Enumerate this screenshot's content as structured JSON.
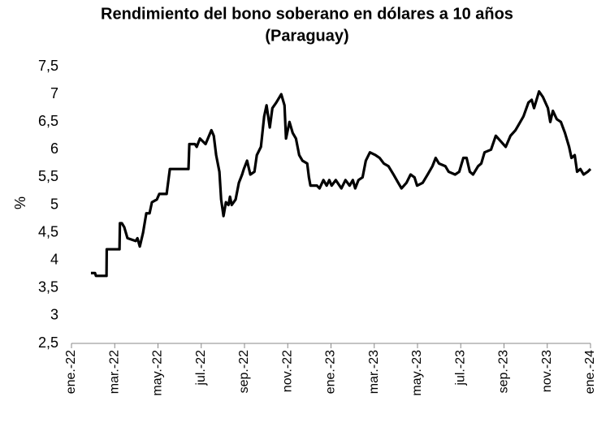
{
  "chart_data": {
    "type": "line",
    "title": [
      "Rendimiento del bono soberano en dólares a 10 años",
      "(Paraguay)"
    ],
    "y_label": "%",
    "xlim": [
      0,
      24
    ],
    "xticks": [
      {
        "value": 0,
        "label": "ene.-22"
      },
      {
        "value": 2,
        "label": "mar.-22"
      },
      {
        "value": 4,
        "label": "may.-22"
      },
      {
        "value": 6,
        "label": "jul.-22"
      },
      {
        "value": 8,
        "label": "sep.-22"
      },
      {
        "value": 10,
        "label": "nov.-22"
      },
      {
        "value": 12,
        "label": "ene.-23"
      },
      {
        "value": 14,
        "label": "mar.-23"
      },
      {
        "value": 16,
        "label": "may.-23"
      },
      {
        "value": 18,
        "label": "jul.-23"
      },
      {
        "value": 20,
        "label": "sep.-23"
      },
      {
        "value": 22,
        "label": "nov.-23"
      },
      {
        "value": 24,
        "label": "ene.-24"
      }
    ],
    "ylim": [
      2.5,
      7.5
    ],
    "yticks": [
      {
        "value": 2.5,
        "label": "2,5"
      },
      3,
      {
        "value": 3.5,
        "label": "3,5"
      },
      4,
      {
        "value": 4.5,
        "label": "4,5"
      },
      5,
      {
        "value": 5.5,
        "label": "5,5"
      },
      6,
      {
        "value": 6.5,
        "label": "6,5"
      },
      7,
      {
        "value": 7.5,
        "label": "7,5"
      }
    ],
    "grid": false,
    "series": [
      {
        "color": "#000000",
        "x": [
          0.9,
          1.09,
          1.13,
          1.62,
          1.63,
          2.22,
          2.24,
          2.33,
          2.44,
          2.59,
          2.97,
          3.05,
          3.16,
          3.31,
          3.46,
          3.61,
          3.72,
          3.95,
          4.06,
          4.4,
          4.55,
          5.41,
          5.45,
          5.71,
          5.79,
          5.94,
          6.2,
          6.47,
          6.58,
          6.69,
          6.84,
          6.92,
          7.03,
          7.14,
          7.26,
          7.33,
          7.41,
          7.59,
          7.74,
          7.89,
          7.97,
          8.12,
          8.27,
          8.46,
          8.57,
          8.76,
          8.91,
          9.02,
          9.17,
          9.29,
          9.47,
          9.7,
          9.85,
          9.92,
          10.08,
          10.23,
          10.38,
          10.53,
          10.68,
          10.9,
          10.98,
          11.05,
          11.35,
          11.47,
          11.65,
          11.8,
          11.92,
          12.03,
          12.22,
          12.48,
          12.67,
          12.86,
          13.01,
          13.12,
          13.27,
          13.46,
          13.61,
          13.8,
          14.06,
          14.25,
          14.44,
          14.66,
          14.89,
          15.11,
          15.26,
          15.49,
          15.68,
          15.86,
          15.98,
          16.24,
          16.47,
          16.69,
          16.84,
          16.99,
          17.29,
          17.44,
          17.74,
          17.93,
          18.12,
          18.27,
          18.42,
          18.57,
          18.8,
          18.95,
          19.1,
          19.4,
          19.62,
          19.85,
          20.08,
          20.3,
          20.53,
          20.68,
          20.9,
          21.13,
          21.28,
          21.39,
          21.62,
          21.8,
          22.03,
          22.14,
          22.26,
          22.44,
          22.63,
          22.82,
          23.01,
          23.12,
          23.27,
          23.38,
          23.53,
          23.68,
          23.87,
          24.0
        ],
        "values": [
          3.77,
          3.77,
          3.72,
          3.72,
          4.2,
          4.2,
          4.67,
          4.67,
          4.6,
          4.4,
          4.35,
          4.4,
          4.25,
          4.5,
          4.85,
          4.85,
          5.05,
          5.1,
          5.2,
          5.2,
          5.65,
          5.65,
          6.1,
          6.1,
          6.05,
          6.2,
          6.1,
          6.35,
          6.25,
          5.9,
          5.6,
          5.1,
          4.8,
          5.05,
          5.0,
          5.15,
          5.0,
          5.1,
          5.4,
          5.55,
          5.65,
          5.8,
          5.55,
          5.6,
          5.9,
          6.05,
          6.6,
          6.8,
          6.4,
          6.75,
          6.85,
          7.0,
          6.8,
          6.2,
          6.5,
          6.3,
          6.2,
          5.9,
          5.8,
          5.75,
          5.5,
          5.35,
          5.35,
          5.3,
          5.45,
          5.35,
          5.45,
          5.35,
          5.45,
          5.3,
          5.45,
          5.35,
          5.45,
          5.3,
          5.45,
          5.5,
          5.8,
          5.95,
          5.9,
          5.85,
          5.75,
          5.7,
          5.55,
          5.4,
          5.3,
          5.4,
          5.55,
          5.5,
          5.35,
          5.4,
          5.55,
          5.7,
          5.85,
          5.75,
          5.7,
          5.6,
          5.55,
          5.6,
          5.85,
          5.85,
          5.6,
          5.55,
          5.7,
          5.75,
          5.95,
          6.0,
          6.25,
          6.15,
          6.05,
          6.25,
          6.35,
          6.45,
          6.6,
          6.85,
          6.9,
          6.75,
          7.05,
          6.95,
          6.75,
          6.5,
          6.7,
          6.55,
          6.5,
          6.3,
          6.05,
          5.85,
          5.9,
          5.6,
          5.65,
          5.55,
          5.6,
          5.65
        ]
      }
    ]
  }
}
